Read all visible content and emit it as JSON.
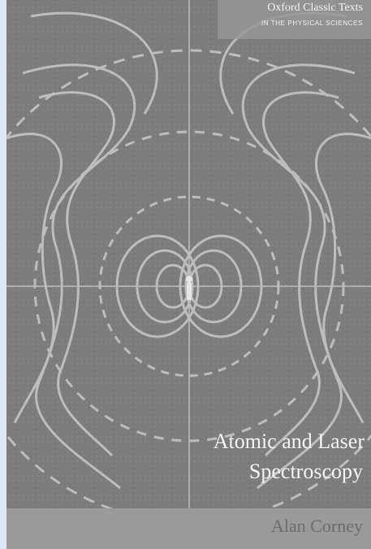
{
  "series": {
    "title": "Oxford Classic Texts",
    "subtitle": "IN THE PHYSICAL SCIENCES"
  },
  "book": {
    "title_line1": "Atomic and Laser",
    "title_line2": "Spectroscopy",
    "author": "Alan Corney"
  },
  "colors": {
    "background": "#dde8f6",
    "cover": "#7c7c7c",
    "lines": "#c9c9c9",
    "text": "#f5f5f5"
  }
}
